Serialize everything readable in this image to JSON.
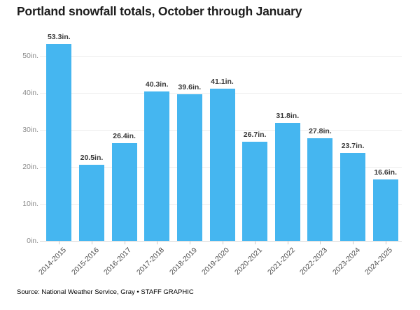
{
  "title": "Portland snowfall totals, October through January",
  "source_note": "Source: National Weather Service, Gray • STAFF GRAPHIC",
  "colors": {
    "bar": "#45b6f0",
    "grid": "#ececec",
    "baseline": "#d9d9d9",
    "tick": "#c9c9c9",
    "y_axis_text": "#8a8a8a",
    "x_axis_text": "#4d4d4d",
    "value_label_text": "#3a3a3a",
    "title_text": "#1d1d1d",
    "source_text": "#646464"
  },
  "chart_data": {
    "type": "bar",
    "title": "Portland snowfall totals, October through January",
    "xlabel": "",
    "ylabel": "",
    "unit": "in.",
    "categories": [
      "2014-2015",
      "2015-2016",
      "2016-2017",
      "2017-2018",
      "2018-2019",
      "2019-2020",
      "2020-2021",
      "2021-2022",
      "2022-2023",
      "2023-2024",
      "2024-2025"
    ],
    "values": [
      53.3,
      20.5,
      26.4,
      40.3,
      39.6,
      41.1,
      26.7,
      31.8,
      27.8,
      23.7,
      16.6
    ],
    "value_labels": [
      "53.3in.",
      "20.5in.",
      "26.4in.",
      "40.3in.",
      "39.6in.",
      "41.1in.",
      "26.7in.",
      "31.8in.",
      "27.8in.",
      "23.7in.",
      "16.6in."
    ],
    "ylim": [
      0,
      55
    ],
    "yticks": [
      0,
      10,
      20,
      30,
      40,
      50
    ],
    "ytick_labels": [
      "0in.",
      "10in.",
      "20in.",
      "30in.",
      "40in.",
      "50in."
    ],
    "grid": true,
    "legend": false
  }
}
